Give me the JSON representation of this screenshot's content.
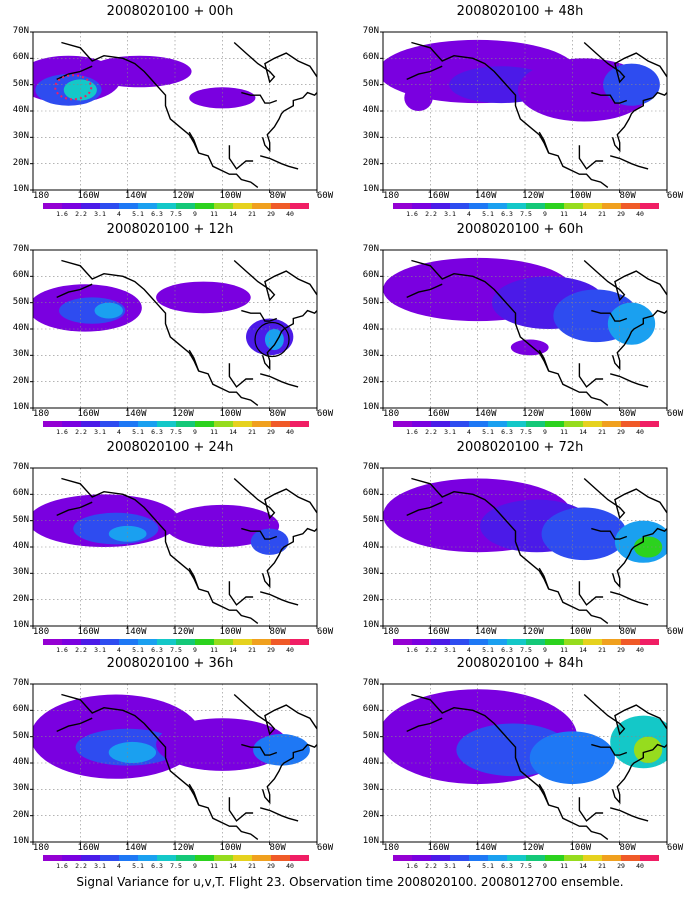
{
  "panels": [
    {
      "title": "2008020100 + 00h",
      "lead_hours": 0
    },
    {
      "title": "2008020100 + 48h",
      "lead_hours": 48
    },
    {
      "title": "2008020100 + 12h",
      "lead_hours": 12
    },
    {
      "title": "2008020100 + 60h",
      "lead_hours": 60
    },
    {
      "title": "2008020100 + 24h",
      "lead_hours": 24
    },
    {
      "title": "2008020100 + 72h",
      "lead_hours": 72
    },
    {
      "title": "2008020100 + 36h",
      "lead_hours": 36
    },
    {
      "title": "2008020100 + 84h",
      "lead_hours": 84
    }
  ],
  "lat_labels": [
    "70N",
    "60N",
    "50N",
    "40N",
    "30N",
    "20N",
    "10N"
  ],
  "lon_labels": [
    "180",
    "160W",
    "140W",
    "120W",
    "100W",
    "80W",
    "60W"
  ],
  "colorbar": {
    "labels": [
      "1.6",
      "2.2",
      "3.1",
      "4",
      "5.1",
      "6.3",
      "7.5",
      "9",
      "11",
      "14",
      "21",
      "29",
      "40"
    ],
    "colors": [
      "#9400d3",
      "#7a00e0",
      "#4b1ae8",
      "#2e4cf0",
      "#1e78f5",
      "#1aa0f0",
      "#14c8c8",
      "#14c878",
      "#2cd21e",
      "#96dc1e",
      "#e6d21e",
      "#f0a01e",
      "#f05a28",
      "#f01e64"
    ]
  },
  "footer": "Signal Variance for u,v,T. Flight 23. Observation time 2008020100. 2008012700 ensemble."
}
